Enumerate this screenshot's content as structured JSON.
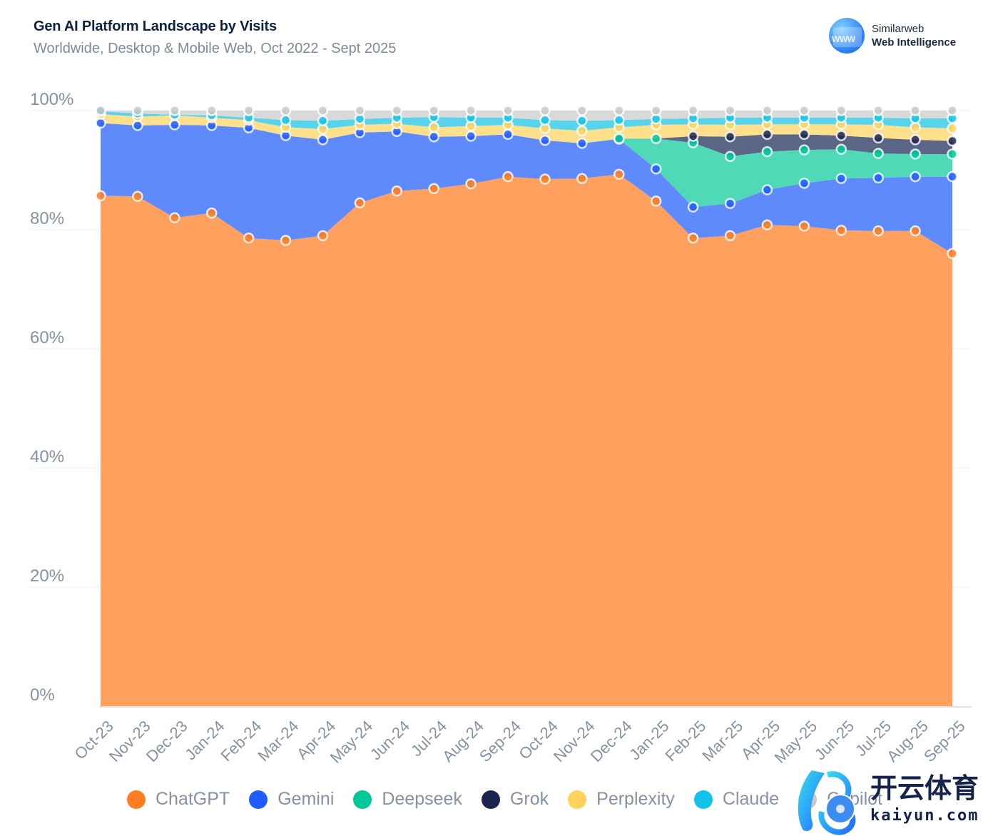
{
  "header": {
    "title": "Gen AI Platform Landscape by Visits",
    "subtitle": "Worldwide, Desktop & Mobile Web, Oct 2022 - Sept 2025"
  },
  "brand": {
    "logo_icon": "www-browser-icon",
    "name": "Similarweb",
    "product": "Web Intelligence"
  },
  "watermark": {
    "cn_text": "开云体育",
    "en_text": "kaiyun.com"
  },
  "chart_data": {
    "type": "area",
    "stacked": true,
    "normalized": true,
    "title": "Gen AI Platform Landscape by Visits",
    "subtitle": "Worldwide, Desktop & Mobile Web, Oct 2022 - Sept 2025",
    "xlabel": "",
    "ylabel": "",
    "ylim": [
      0,
      100
    ],
    "yticks": [
      0,
      20,
      40,
      60,
      80,
      100
    ],
    "ytick_labels": [
      "0%",
      "20%",
      "40%",
      "60%",
      "80%",
      "100%"
    ],
    "grid": true,
    "legend_position": "bottom",
    "categories": [
      "Oct-23",
      "Nov-23",
      "Dec-23",
      "Jan-24",
      "Feb-24",
      "Mar-24",
      "Apr-24",
      "May-24",
      "Jun-24",
      "Jul-24",
      "Aug-24",
      "Sep-24",
      "Oct-24",
      "Nov-24",
      "Dec-24",
      "Jan-25",
      "Feb-25",
      "Mar-25",
      "Apr-25",
      "May-25",
      "Jun-25",
      "Jul-25",
      "Aug-25",
      "Sep-25"
    ],
    "series": [
      {
        "name": "ChatGPT",
        "color": "#ff7d1f",
        "area_color": "#ffa05e",
        "values": [
          85.7,
          85.6,
          82.0,
          82.8,
          78.6,
          78.2,
          79.0,
          84.5,
          86.5,
          86.9,
          87.7,
          88.9,
          88.5,
          88.6,
          89.3,
          84.8,
          78.6,
          79.0,
          80.8,
          80.6,
          79.9,
          79.8,
          79.8,
          76.0
        ]
      },
      {
        "name": "Gemini",
        "color": "#1f5cff",
        "area_color": "#5e8afc",
        "values": [
          12.2,
          11.9,
          15.6,
          14.7,
          18.5,
          17.6,
          16.1,
          11.8,
          10.0,
          8.7,
          8.0,
          7.1,
          6.5,
          5.9,
          5.9,
          5.4,
          5.2,
          5.4,
          5.9,
          7.2,
          8.7,
          8.9,
          9.1,
          12.9
        ]
      },
      {
        "name": "Deepseek",
        "color": "#00c896",
        "area_color": "#4fd9b6",
        "values": [
          0,
          0,
          0,
          0,
          0,
          0,
          0,
          0,
          0,
          0,
          0,
          0,
          0,
          0,
          0.1,
          5.1,
          10.8,
          7.9,
          6.4,
          5.6,
          4.9,
          4.1,
          3.8,
          3.8
        ]
      },
      {
        "name": "Grok",
        "color": "#1b2550",
        "area_color": "#5b6585",
        "values": [
          0,
          0,
          0,
          0,
          0,
          0,
          0,
          0,
          0,
          0,
          0,
          0,
          0,
          0,
          0,
          0,
          1.1,
          3.3,
          2.9,
          2.6,
          2.3,
          2.6,
          2.4,
          2.2
        ]
      },
      {
        "name": "Perplexity",
        "color": "#ffd25c",
        "area_color": "#fedf8c",
        "values": [
          1.5,
          1.5,
          1.6,
          1.3,
          1.3,
          1.4,
          1.8,
          1.3,
          1.3,
          1.6,
          1.7,
          1.6,
          2.0,
          2.1,
          1.9,
          2.3,
          2.0,
          2.0,
          1.7,
          1.7,
          1.9,
          2.2,
          2.1,
          2.1
        ]
      },
      {
        "name": "Claude",
        "color": "#12c2e8",
        "area_color": "#57d3ec",
        "values": [
          0.5,
          0.5,
          0.1,
          0.4,
          0.4,
          1.2,
          1.4,
          1.0,
          1.0,
          1.7,
          1.4,
          1.2,
          1.4,
          1.7,
          1.2,
          1.0,
          1.0,
          1.2,
          1.1,
          1.1,
          1.1,
          1.2,
          1.5,
          1.7
        ]
      },
      {
        "name": "Copilot",
        "color": "#c8c8c8",
        "area_color": "#d9d9d9",
        "values": [
          0.1,
          0.5,
          0.7,
          0.8,
          1.2,
          1.6,
          1.7,
          1.4,
          1.2,
          1.1,
          1.2,
          1.2,
          1.6,
          1.7,
          1.6,
          1.4,
          1.3,
          1.2,
          1.2,
          1.2,
          1.2,
          1.2,
          1.3,
          1.3
        ]
      }
    ]
  }
}
